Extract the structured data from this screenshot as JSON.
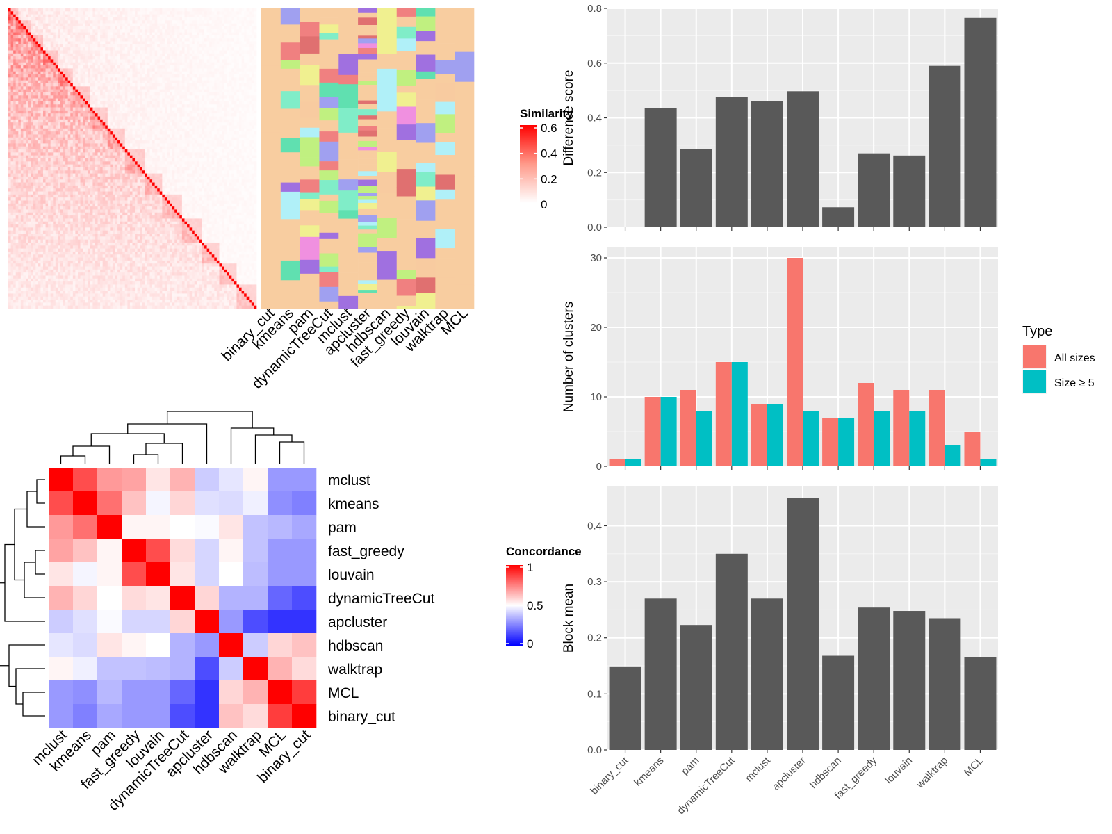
{
  "chart_data": [
    {
      "type": "heatmap",
      "title": "",
      "panel": "similarity-heatmap-with-cluster-annotation",
      "legend": {
        "title": "Similarity",
        "ticks": [
          "0",
          "0.2",
          "0.4",
          "0.6"
        ],
        "range": [
          0,
          0.6
        ],
        "colors": [
          "#ffffff",
          "#ff0000"
        ],
        "placement": "right"
      },
      "annotation_columns": [
        "binary_cut",
        "kmeans",
        "pam",
        "dynamicTreeCut",
        "mclust",
        "apcluster",
        "hdbscan",
        "fast_greedy",
        "louvain",
        "walktrap",
        "MCL"
      ],
      "matrix_size": 100
    },
    {
      "type": "heatmap",
      "title": "",
      "panel": "concordance-heatmap",
      "legend": {
        "title": "Concordance",
        "ticks": [
          "0",
          "0.5",
          "1"
        ],
        "range": [
          0,
          1
        ],
        "colors": [
          "#0000ff",
          "#ffffff",
          "#ff0000"
        ],
        "placement": "right"
      },
      "rows": [
        "mclust",
        "kmeans",
        "pam",
        "fast_greedy",
        "louvain",
        "dynamicTreeCut",
        "apcluster",
        "hdbscan",
        "walktrap",
        "MCL",
        "binary_cut"
      ],
      "cols": [
        "mclust",
        "kmeans",
        "pam",
        "fast_greedy",
        "louvain",
        "dynamicTreeCut",
        "apcluster",
        "hdbscan",
        "walktrap",
        "MCL",
        "binary_cut"
      ],
      "values": [
        [
          1.0,
          0.85,
          0.7,
          0.68,
          0.55,
          0.65,
          0.4,
          0.45,
          0.52,
          0.3,
          0.3
        ],
        [
          0.85,
          1.0,
          0.78,
          0.62,
          0.48,
          0.58,
          0.44,
          0.43,
          0.47,
          0.28,
          0.25
        ],
        [
          0.7,
          0.78,
          1.0,
          0.52,
          0.52,
          0.5,
          0.49,
          0.55,
          0.38,
          0.36,
          0.33
        ],
        [
          0.68,
          0.62,
          0.52,
          1.0,
          0.85,
          0.57,
          0.42,
          0.52,
          0.38,
          0.3,
          0.3
        ],
        [
          0.55,
          0.48,
          0.52,
          0.85,
          1.0,
          0.55,
          0.42,
          0.5,
          0.37,
          0.3,
          0.3
        ],
        [
          0.65,
          0.58,
          0.5,
          0.57,
          0.55,
          1.0,
          0.58,
          0.35,
          0.35,
          0.2,
          0.15
        ],
        [
          0.4,
          0.44,
          0.49,
          0.42,
          0.42,
          0.58,
          1.0,
          0.3,
          0.15,
          0.1,
          0.1
        ],
        [
          0.45,
          0.43,
          0.55,
          0.52,
          0.5,
          0.35,
          0.3,
          1.0,
          0.4,
          0.58,
          0.62
        ],
        [
          0.52,
          0.47,
          0.38,
          0.38,
          0.37,
          0.35,
          0.15,
          0.4,
          1.0,
          0.65,
          0.57
        ],
        [
          0.3,
          0.28,
          0.36,
          0.3,
          0.3,
          0.2,
          0.1,
          0.58,
          0.65,
          1.0,
          0.88
        ],
        [
          0.3,
          0.25,
          0.33,
          0.3,
          0.3,
          0.15,
          0.1,
          0.62,
          0.57,
          0.88,
          1.0
        ]
      ]
    },
    {
      "type": "bar",
      "title": "",
      "categories": [
        "binary_cut",
        "kmeans",
        "pam",
        "dynamicTreeCut",
        "mclust",
        "apcluster",
        "hdbscan",
        "fast_greedy",
        "louvain",
        "walktrap",
        "MCL"
      ],
      "values": [
        0,
        0.435,
        0.285,
        0.475,
        0.46,
        0.497,
        0.073,
        0.27,
        0.262,
        0.59,
        0.765
      ],
      "xlabel": "",
      "ylabel": "Difference score",
      "ylim": [
        0,
        0.8
      ],
      "yticks": [
        "0.0",
        "0.2",
        "0.4",
        "0.6",
        "0.8"
      ],
      "bar_color": "#595959",
      "grid": true
    },
    {
      "type": "bar",
      "title": "",
      "categories": [
        "binary_cut",
        "kmeans",
        "pam",
        "dynamicTreeCut",
        "mclust",
        "apcluster",
        "hdbscan",
        "fast_greedy",
        "louvain",
        "walktrap",
        "MCL"
      ],
      "series": [
        {
          "name": "All sizes",
          "color": "#F8766D",
          "values": [
            1,
            10,
            11,
            15,
            9,
            30,
            7,
            12,
            11,
            11,
            5
          ]
        },
        {
          "name": "Size ≥ 5",
          "color": "#00BFC4",
          "values": [
            1,
            10,
            8,
            15,
            9,
            8,
            7,
            8,
            8,
            3,
            1
          ]
        }
      ],
      "xlabel": "",
      "ylabel": "Number of clusters",
      "ylim": [
        0,
        31.5
      ],
      "yticks": [
        "0",
        "10",
        "20",
        "30"
      ],
      "legend": {
        "title": "Type",
        "placement": "right"
      },
      "grid": true
    },
    {
      "type": "bar",
      "title": "",
      "categories": [
        "binary_cut",
        "kmeans",
        "pam",
        "dynamicTreeCut",
        "mclust",
        "apcluster",
        "hdbscan",
        "fast_greedy",
        "louvain",
        "walktrap",
        "MCL"
      ],
      "values": [
        0.149,
        0.27,
        0.223,
        0.35,
        0.27,
        0.45,
        0.168,
        0.254,
        0.248,
        0.235,
        0.165
      ],
      "xlabel": "",
      "ylabel": "Block mean",
      "ylim": [
        0,
        0.47
      ],
      "yticks": [
        "0.0",
        "0.1",
        "0.2",
        "0.3",
        "0.4"
      ],
      "bar_color": "#595959",
      "grid": true
    }
  ]
}
